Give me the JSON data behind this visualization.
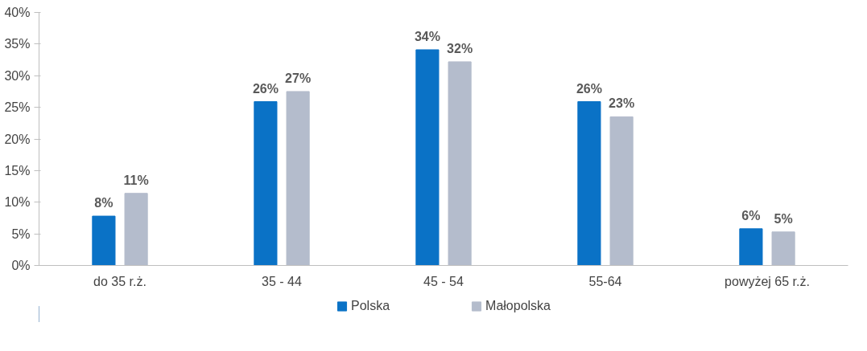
{
  "chart_data": {
    "type": "bar",
    "categories": [
      "do 35 r.ż.",
      "35 - 44",
      "45 - 54",
      "55-64",
      "powyżej 65 r.ż."
    ],
    "series": [
      {
        "name": "Polska",
        "color": "#0a72c6",
        "values": [
          7.8,
          25.9,
          34.1,
          25.9,
          5.8
        ],
        "value_labels": [
          "8%",
          "26%",
          "34%",
          "26%",
          "6%"
        ]
      },
      {
        "name": "Małopolska",
        "color": "#b4bccc",
        "values": [
          11.4,
          27.5,
          32.2,
          23.5,
          5.3
        ],
        "value_labels": [
          "11%",
          "27%",
          "32%",
          "23%",
          "5%"
        ]
      }
    ],
    "ylim": [
      0,
      40
    ],
    "yticks": [
      {
        "value": 0,
        "label": "0%"
      },
      {
        "value": 5,
        "label": "5%"
      },
      {
        "value": 10,
        "label": "10%"
      },
      {
        "value": 15,
        "label": "15%"
      },
      {
        "value": 20,
        "label": "20%"
      },
      {
        "value": 25,
        "label": "25%"
      },
      {
        "value": 30,
        "label": "30%"
      },
      {
        "value": 35,
        "label": "35%"
      },
      {
        "value": 40,
        "label": "40%"
      }
    ],
    "grid": false,
    "legend": "bottom"
  }
}
